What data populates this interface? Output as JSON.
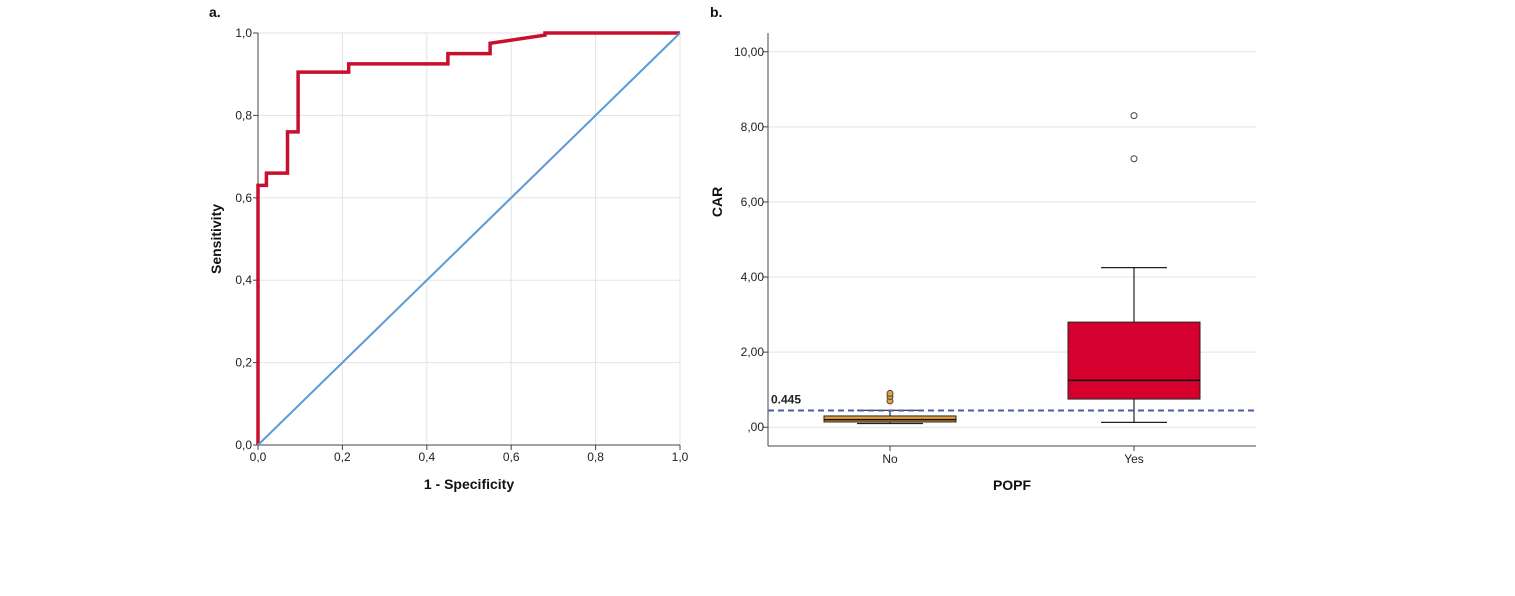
{
  "chart_data": [
    {
      "type": "line",
      "panel_label": "a.",
      "xlabel": "1 - Specificity",
      "ylabel": "Sensitivity",
      "xlim": [
        0,
        1
      ],
      "ylim": [
        0,
        1
      ],
      "x_ticks": [
        "0,0",
        "0,2",
        "0,4",
        "0,6",
        "0,8",
        "1,0"
      ],
      "y_ticks": [
        "0,0",
        "0,2",
        "0,4",
        "0,6",
        "0,8",
        "1,0"
      ],
      "grid": true,
      "series": [
        {
          "color": "#c8102e",
          "x": [
            0,
            0,
            0.02,
            0.02,
            0.07,
            0.07,
            0.095,
            0.095,
            0.215,
            0.215,
            0.45,
            0.45,
            0.55,
            0.55,
            0.68,
            0.68,
            1.0
          ],
          "y": [
            0,
            0.63,
            0.63,
            0.66,
            0.66,
            0.76,
            0.76,
            0.905,
            0.905,
            0.925,
            0.925,
            0.95,
            0.95,
            0.975,
            0.995,
            1.0,
            1.0
          ]
        },
        {
          "color": "#5b9bd5",
          "x": [
            0,
            1
          ],
          "y": [
            0,
            1
          ]
        }
      ]
    },
    {
      "type": "box",
      "panel_label": "b.",
      "xlabel": "POPF",
      "ylabel": "CAR",
      "categories": [
        "No",
        "Yes"
      ],
      "ylim": [
        -0.5,
        10.5
      ],
      "y_ticks": [
        0,
        2,
        4,
        6,
        8,
        10
      ],
      "y_tick_labels": [
        ",00",
        "2,00",
        "4,00",
        "6,00",
        "8,00",
        "10,00"
      ],
      "grid": true,
      "boxes": [
        {
          "category": "No",
          "color": "#e8a13a",
          "min": 0.1,
          "q1": 0.14,
          "median": 0.2,
          "q3": 0.3,
          "max": 0.45,
          "outliers": [
            0.7,
            0.82,
            0.9
          ]
        },
        {
          "category": "Yes",
          "color": "#d6002f",
          "min": 0.13,
          "q1": 0.75,
          "median": 1.25,
          "q3": 2.8,
          "max": 4.25,
          "outliers": [
            7.15,
            8.3
          ]
        }
      ],
      "reference_line": {
        "value": 0.445,
        "label": "0.445",
        "color": "#4a5ba8",
        "style": "dashed"
      }
    }
  ]
}
